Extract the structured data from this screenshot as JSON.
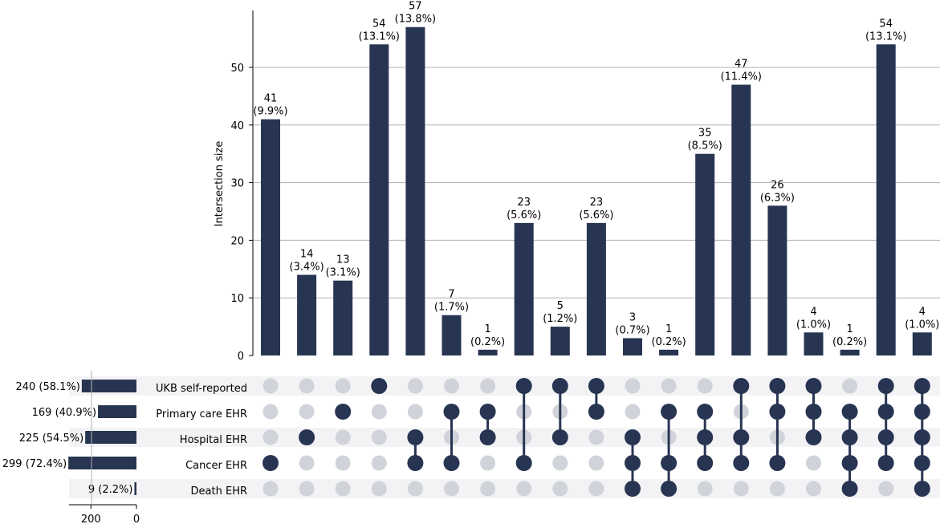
{
  "chart_data": {
    "type": "upset",
    "ylabel": "Intersection size",
    "ylim": [
      0,
      60
    ],
    "yticks": [
      0,
      10,
      20,
      30,
      40,
      50
    ],
    "set_size_xticks": [
      200,
      0
    ],
    "bar_color": "#283552",
    "dot_inactive_color": "#d0d3da",
    "sets": [
      {
        "name": "UKB self-reported",
        "size": 240,
        "label": "240 (58.1%)"
      },
      {
        "name": "Primary care EHR",
        "size": 169,
        "label": "169 (40.9%)"
      },
      {
        "name": "Hospital EHR",
        "size": 225,
        "label": "225 (54.5%)"
      },
      {
        "name": "Cancer EHR",
        "size": 299,
        "label": "299 (72.4%)"
      },
      {
        "name": "Death EHR",
        "size": 9,
        "label": "9 (2.2%)"
      }
    ],
    "intersections": [
      {
        "value": 41,
        "count_label": "41",
        "pct_label": "(9.9%)",
        "members": [
          3
        ]
      },
      {
        "value": 14,
        "count_label": "14",
        "pct_label": "(3.4%)",
        "members": [
          2
        ]
      },
      {
        "value": 13,
        "count_label": "13",
        "pct_label": "(3.1%)",
        "members": [
          1
        ]
      },
      {
        "value": 54,
        "count_label": "54",
        "pct_label": "(13.1%)",
        "members": [
          0
        ]
      },
      {
        "value": 57,
        "count_label": "57",
        "pct_label": "(13.8%)",
        "members": [
          2,
          3
        ]
      },
      {
        "value": 7,
        "count_label": "7",
        "pct_label": "(1.7%)",
        "members": [
          1,
          3
        ]
      },
      {
        "value": 1,
        "count_label": "1",
        "pct_label": "(0.2%)",
        "members": [
          1,
          2
        ]
      },
      {
        "value": 23,
        "count_label": "23",
        "pct_label": "(5.6%)",
        "members": [
          0,
          3
        ]
      },
      {
        "value": 5,
        "count_label": "5",
        "pct_label": "(1.2%)",
        "members": [
          0,
          2
        ]
      },
      {
        "value": 23,
        "count_label": "23",
        "pct_label": "(5.6%)",
        "members": [
          0,
          1
        ]
      },
      {
        "value": 3,
        "count_label": "3",
        "pct_label": "(0.7%)",
        "members": [
          2,
          3,
          4
        ]
      },
      {
        "value": 1,
        "count_label": "1",
        "pct_label": "(0.2%)",
        "members": [
          1,
          3,
          4
        ]
      },
      {
        "value": 35,
        "count_label": "35",
        "pct_label": "(8.5%)",
        "members": [
          1,
          2,
          3
        ]
      },
      {
        "value": 47,
        "count_label": "47",
        "pct_label": "(11.4%)",
        "members": [
          0,
          2,
          3
        ]
      },
      {
        "value": 26,
        "count_label": "26",
        "pct_label": "(6.3%)",
        "members": [
          0,
          1,
          3
        ]
      },
      {
        "value": 4,
        "count_label": "4",
        "pct_label": "(1.0%)",
        "members": [
          0,
          1,
          2
        ]
      },
      {
        "value": 1,
        "count_label": "1",
        "pct_label": "(0.2%)",
        "members": [
          1,
          2,
          3,
          4
        ]
      },
      {
        "value": 54,
        "count_label": "54",
        "pct_label": "(13.1%)",
        "members": [
          0,
          1,
          2,
          3
        ]
      },
      {
        "value": 4,
        "count_label": "4",
        "pct_label": "(1.0%)",
        "members": [
          0,
          1,
          2,
          3,
          4
        ]
      }
    ]
  }
}
